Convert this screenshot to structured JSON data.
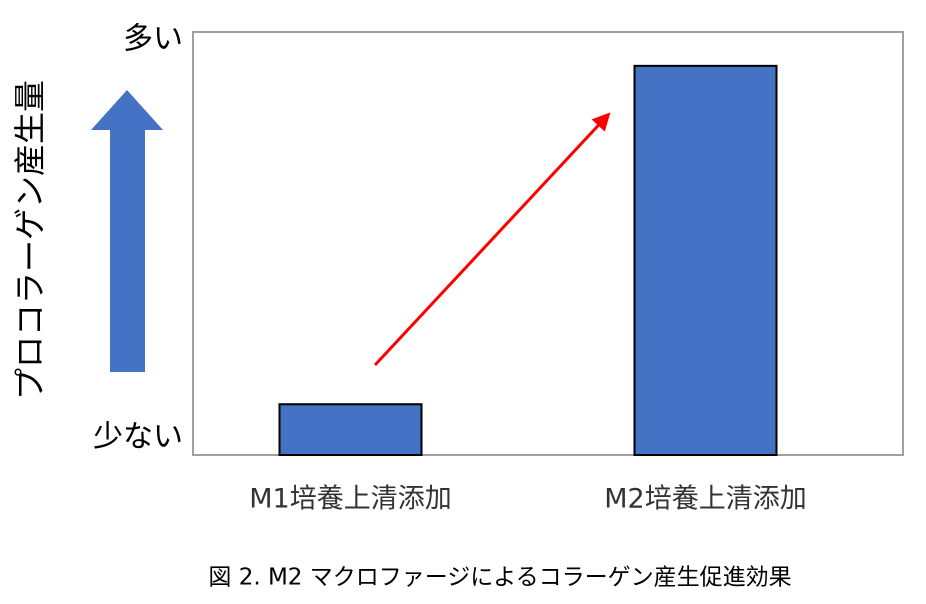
{
  "chart_data": {
    "type": "bar",
    "caption": "図 2. M2 マクロファージによるコラーゲン産生促進効果",
    "y_label": "プロコラーゲン産生量",
    "categories": [
      "M1培養上清添加",
      "M2培養上清添加"
    ],
    "values": [
      12,
      92
    ],
    "color": "#4472c4",
    "ylim": [
      0,
      100
    ],
    "yticks": [
      {
        "value": 0,
        "label": "少ない"
      },
      {
        "value": 100,
        "label": "多い"
      }
    ]
  }
}
